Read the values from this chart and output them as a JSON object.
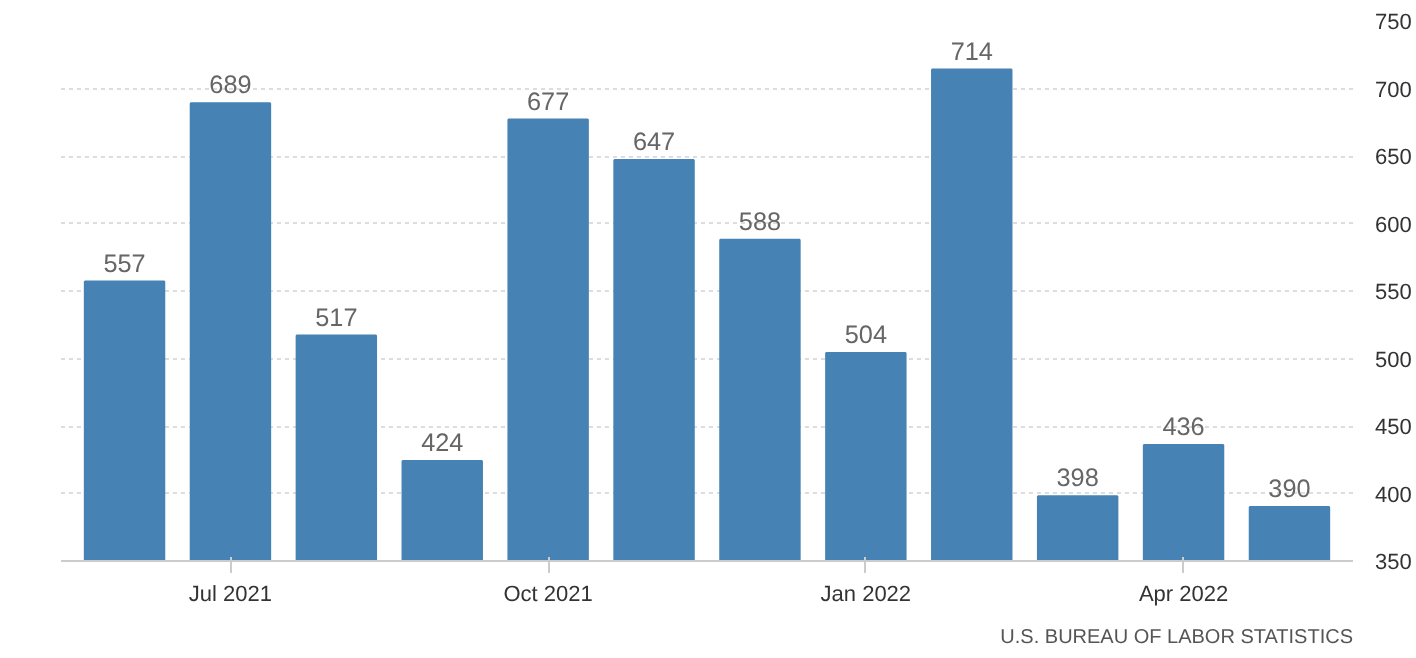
{
  "chart_data": {
    "type": "bar",
    "categories": [
      null,
      "Jul 2021",
      null,
      null,
      "Oct 2021",
      null,
      null,
      "Jan 2022",
      null,
      null,
      "Apr 2022",
      null
    ],
    "values": [
      557,
      689,
      517,
      424,
      677,
      647,
      588,
      504,
      714,
      398,
      436,
      390
    ],
    "color": "#4682b4",
    "ylim": [
      350,
      750
    ],
    "yticks": [
      350,
      400,
      450,
      500,
      550,
      600,
      650,
      700,
      750
    ],
    "grid": "y",
    "data_labels": true,
    "annotations": [
      "U.S. BUREAU OF LABOR STATISTICS"
    ]
  }
}
